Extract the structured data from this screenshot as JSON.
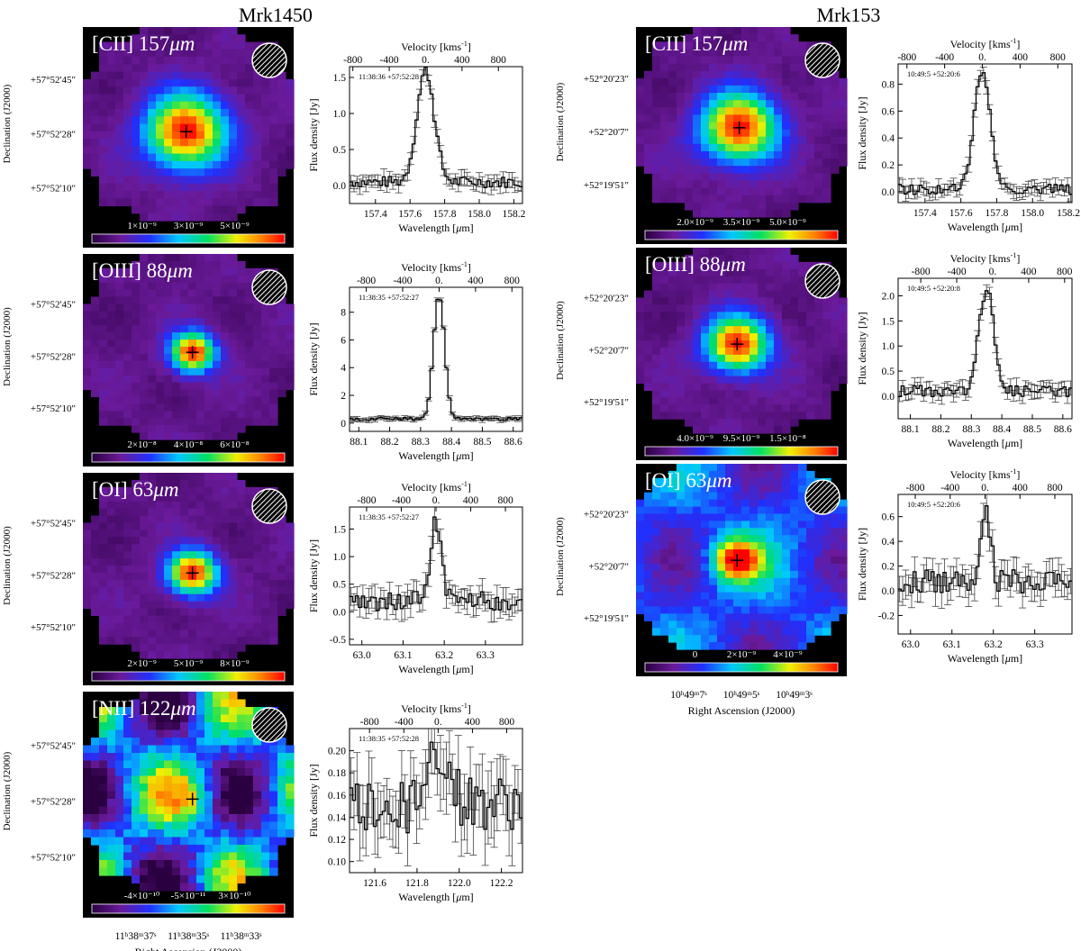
{
  "figure": {
    "left_title": "Mrk1450",
    "right_title": "Mrk153"
  },
  "labels": {
    "velocity_axis": "Velocity [kms",
    "velocity_sup": "-1",
    "velocity_close": "]",
    "flux_axis": "Flux density [Jy]",
    "wavelength_axis": "Wavelength [",
    "wavelength_mu": "μ",
    "wavelength_close": "m]",
    "dec_axis": "Declination (J2000)",
    "ra_axis": "Right Ascension (J2000)"
  },
  "maps": [
    {
      "galaxy": "Mrk1450",
      "line": "[CII] 157",
      "unit": "μm",
      "style": "peak",
      "peak": [
        0.49,
        0.54
      ],
      "spread": 0.18,
      "ra_ticks": [],
      "dec_ticks": [
        "+57°52'45\"",
        "+57°52'28\"",
        "+57°52'10\""
      ],
      "colorbar": [
        "1×10⁻⁹",
        "3×10⁻⁹",
        "5×10⁻⁹"
      ]
    },
    {
      "galaxy": "Mrk1450",
      "line": "[OIII] 88",
      "unit": "μm",
      "style": "peak",
      "peak": [
        0.52,
        0.53
      ],
      "spread": 0.1,
      "ra_ticks": [],
      "dec_ticks": [
        "+57°52'45\"",
        "+57°52'28\"",
        "+57°52'10\""
      ],
      "colorbar": [
        "2×10⁻⁸",
        "4×10⁻⁸",
        "6×10⁻⁸"
      ]
    },
    {
      "galaxy": "Mrk1450",
      "line": "[OI] 63",
      "unit": "μm",
      "style": "peak",
      "peak": [
        0.52,
        0.54
      ],
      "spread": 0.11,
      "ra_ticks": [],
      "dec_ticks": [
        "+57°52'45\"",
        "+57°52'28\"",
        "+57°52'10\""
      ],
      "colorbar": [
        "2×10⁻⁹",
        "5×10⁻⁹",
        "8×10⁻⁹"
      ]
    },
    {
      "galaxy": "Mrk1450",
      "line": "[NII] 122",
      "unit": "μm",
      "style": "patchy",
      "peak": [
        0.52,
        0.54
      ],
      "spread": 0.3,
      "ra_ticks": [
        "11ʰ38ᵐ37ˢ",
        "11ʰ38ᵐ35ˢ",
        "11ʰ38ᵐ33ˢ"
      ],
      "dec_ticks": [
        "+57°52'45\"",
        "+57°52'28\"",
        "+57°52'10\""
      ],
      "colorbar": [
        "-4×10⁻¹⁰",
        "-5×10⁻¹¹",
        "3×10⁻¹⁰"
      ]
    },
    {
      "galaxy": "Mrk153",
      "line": "[CII] 157",
      "unit": "μm",
      "style": "peak",
      "peak": [
        0.49,
        0.53
      ],
      "spread": 0.17,
      "ra_ticks": [],
      "dec_ticks": [
        "+52°20'23\"",
        "+52°20'7\"",
        "+52°19'51\""
      ],
      "colorbar": [
        "2.0×10⁻⁹",
        "3.5×10⁻⁹",
        "5.0×10⁻⁹"
      ]
    },
    {
      "galaxy": "Mrk153",
      "line": "[OIII] 88",
      "unit": "μm",
      "style": "peak",
      "peak": [
        0.48,
        0.52
      ],
      "spread": 0.14,
      "ra_ticks": [],
      "dec_ticks": [
        "+52°20'23\"",
        "+52°20'7\"",
        "+52°19'51\""
      ],
      "colorbar": [
        "4.0×10⁻⁹",
        "9.5×10⁻⁹",
        "1.5×10⁻⁸"
      ]
    },
    {
      "galaxy": "Mrk153",
      "line": "[OI] 63",
      "unit": "μm",
      "style": "broad",
      "peak": [
        0.48,
        0.52
      ],
      "spread": 0.28,
      "ra_ticks": [
        "10ʰ49ᵐ7ˢ",
        "10ʰ49ᵐ5ˢ",
        "10ʰ49ᵐ3ˢ"
      ],
      "dec_ticks": [
        "+52°20'23\"",
        "+52°20'7\"",
        "+52°19'51\""
      ],
      "colorbar": [
        "0",
        "2×10⁻⁹",
        "4×10⁻⁹"
      ]
    }
  ],
  "chart_data": [
    {
      "type": "line",
      "galaxy": "Mrk1450",
      "line": "[CII] 157μm",
      "annotation": "11:38:36 +57:52:28",
      "xlabel": "Wavelength [μm]",
      "ylabel": "Flux density [Jy]",
      "x2label": "Velocity [kms-1]",
      "xlim": [
        157.25,
        158.25
      ],
      "ylim": [
        -0.25,
        1.65
      ],
      "xticks": [
        157.4,
        157.6,
        157.8,
        158.0,
        158.2
      ],
      "yticks": [
        0.0,
        0.5,
        1.0,
        1.5
      ],
      "vticks": [
        -800,
        -400,
        0,
        400,
        800
      ],
      "vzero": 157.69,
      "line_profile": {
        "center": 157.69,
        "sigma": 0.05,
        "amp": 1.55,
        "base": 0.05,
        "noise": 0.08
      }
    },
    {
      "type": "line",
      "galaxy": "Mrk1450",
      "line": "[OIII] 88μm",
      "annotation": "11:38:35 +57:52:27",
      "xlabel": "Wavelength [μm]",
      "ylabel": "Flux density [Jy]",
      "x2label": "Velocity [kms-1]",
      "xlim": [
        88.07,
        88.63
      ],
      "ylim": [
        -0.6,
        9.8
      ],
      "xticks": [
        88.1,
        88.2,
        88.3,
        88.4,
        88.5,
        88.6
      ],
      "yticks": [
        0,
        2,
        4,
        6,
        8
      ],
      "vticks": [
        -800,
        -400,
        0,
        400,
        800
      ],
      "vzero": 88.36,
      "line_profile": {
        "center": 88.36,
        "sigma": 0.018,
        "amp": 8.9,
        "base": 0.3,
        "noise": 0.12
      }
    },
    {
      "type": "line",
      "galaxy": "Mrk1450",
      "line": "[OI] 63μm",
      "annotation": "11:38:35 +57:52:27",
      "xlabel": "Wavelength [μm]",
      "ylabel": "Flux density [Jy]",
      "x2label": "Velocity [kms-1]",
      "xlim": [
        62.97,
        63.39
      ],
      "ylim": [
        -0.6,
        1.9
      ],
      "xticks": [
        63.0,
        63.1,
        63.2,
        63.3
      ],
      "yticks": [
        -0.5,
        0.0,
        0.5,
        1.0,
        1.5
      ],
      "vticks": [
        -800,
        -400,
        0,
        400,
        800
      ],
      "vzero": 63.18,
      "line_profile": {
        "center": 63.18,
        "sigma": 0.012,
        "amp": 1.5,
        "base": 0.2,
        "noise": 0.18
      }
    },
    {
      "type": "line",
      "galaxy": "Mrk1450",
      "line": "[NII] 122μm",
      "annotation": "11:38:35 +57:52:28",
      "xlabel": "Wavelength [μm]",
      "ylabel": "Flux density [Jy]",
      "x2label": "Velocity [kms-1]",
      "xlim": [
        121.48,
        122.3
      ],
      "ylim": [
        0.09,
        0.22
      ],
      "xticks": [
        121.6,
        121.8,
        122.0,
        122.2
      ],
      "yticks": [
        0.1,
        0.12,
        0.14,
        0.16,
        0.18,
        0.2
      ],
      "vticks": [
        -800,
        -400,
        0,
        400,
        800
      ],
      "vzero": 121.9,
      "line_profile": {
        "center": 121.9,
        "sigma": 0.05,
        "amp": 0.05,
        "base": 0.15,
        "noise": 0.025
      }
    },
    {
      "type": "line",
      "galaxy": "Mrk153",
      "line": "[CII] 157μm",
      "annotation": "10:49:5 +52:20:6",
      "xlabel": "Wavelength [μm]",
      "ylabel": "Flux density [Jy]",
      "x2label": "Velocity [kms-1]",
      "xlim": [
        157.25,
        158.22
      ],
      "ylim": [
        -0.08,
        0.95
      ],
      "xticks": [
        157.4,
        157.6,
        157.8,
        158.0,
        158.2
      ],
      "yticks": [
        0.0,
        0.2,
        0.4,
        0.6,
        0.8
      ],
      "vticks": [
        -800,
        -400,
        0,
        400,
        800
      ],
      "vzero": 157.72,
      "line_profile": {
        "center": 157.72,
        "sigma": 0.045,
        "amp": 0.88,
        "base": 0.02,
        "noise": 0.04
      }
    },
    {
      "type": "line",
      "galaxy": "Mrk153",
      "line": "[OIII] 88μm",
      "annotation": "10:49:5 +52:20:8",
      "xlabel": "Wavelength [μm]",
      "ylabel": "Flux density [Jy]",
      "x2label": "Velocity [kms-1]",
      "xlim": [
        88.06,
        88.63
      ],
      "ylim": [
        -0.45,
        2.35
      ],
      "xticks": [
        88.1,
        88.2,
        88.3,
        88.4,
        88.5,
        88.6
      ],
      "yticks": [
        0.0,
        0.5,
        1.0,
        1.5,
        2.0
      ],
      "vticks": [
        -800,
        -400,
        0,
        400,
        800
      ],
      "vzero": 88.37,
      "line_profile": {
        "center": 88.35,
        "sigma": 0.025,
        "amp": 2.0,
        "base": 0.1,
        "noise": 0.12
      }
    },
    {
      "type": "line",
      "galaxy": "Mrk153",
      "line": "[OI] 63μm",
      "annotation": "10:49:5 +52:20:6",
      "xlabel": "Wavelength [μm]",
      "ylabel": "Flux density [Jy]",
      "x2label": "Velocity [kms-1]",
      "xlim": [
        62.97,
        63.39
      ],
      "ylim": [
        -0.35,
        0.78
      ],
      "xticks": [
        63.0,
        63.1,
        63.2,
        63.3
      ],
      "yticks": [
        -0.2,
        0.0,
        0.2,
        0.4,
        0.6
      ],
      "vticks": [
        -800,
        -400,
        0,
        400,
        800
      ],
      "vzero": 63.18,
      "line_profile": {
        "center": 63.18,
        "sigma": 0.012,
        "amp": 0.6,
        "base": 0.08,
        "noise": 0.1
      }
    }
  ]
}
